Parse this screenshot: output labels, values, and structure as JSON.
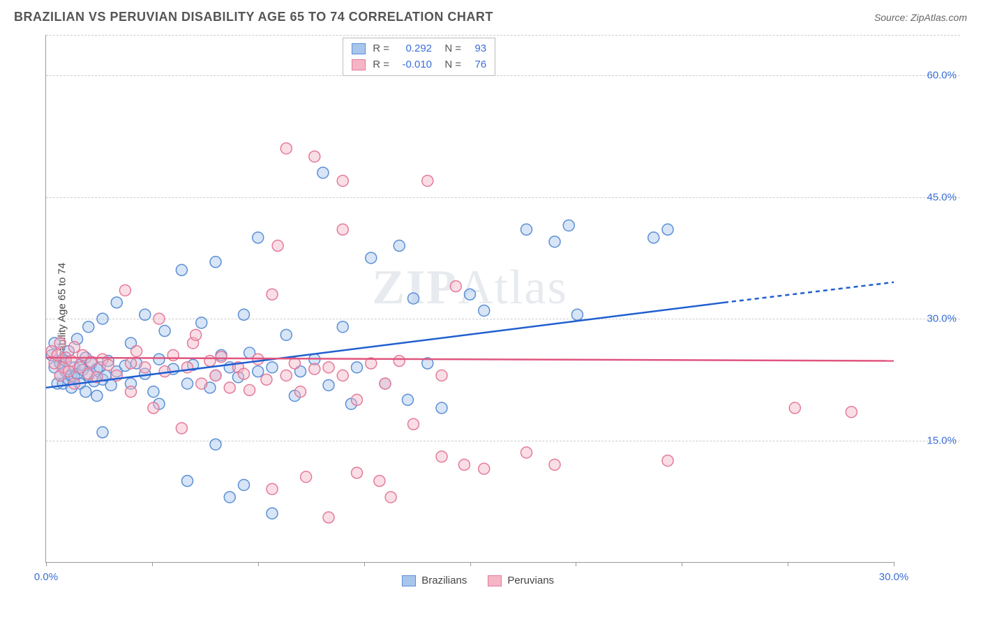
{
  "title": "BRAZILIAN VS PERUVIAN DISABILITY AGE 65 TO 74 CORRELATION CHART",
  "source": "Source: ZipAtlas.com",
  "ylabel": "Disability Age 65 to 74",
  "watermark_bold": "ZIP",
  "watermark_light": "Atlas",
  "chart": {
    "type": "scatter",
    "background_color": "#ffffff",
    "grid_color": "#cccccc",
    "axis_color": "#999999",
    "label_color": "#3a6fd8",
    "xlim": [
      0,
      30
    ],
    "ylim": [
      0,
      65
    ],
    "xticks": [
      0,
      3.75,
      7.5,
      11.25,
      15,
      18.75,
      22.5,
      26.25,
      30
    ],
    "xtick_labels": {
      "0": "0.0%",
      "30": "30.0%"
    },
    "yticks": [
      15,
      30,
      45,
      60
    ],
    "ytick_labels": {
      "15": "15.0%",
      "30": "30.0%",
      "45": "45.0%",
      "60": "60.0%"
    },
    "marker_radius": 8,
    "marker_opacity": 0.45,
    "line_width": 2.5,
    "series": [
      {
        "name": "Brazilians",
        "color_fill": "#a8c5ec",
        "color_stroke": "#5a8fd6",
        "line_color": "#1f5fd0",
        "R": "0.292",
        "N": "93",
        "trend": {
          "x1": 0,
          "y1": 21.5,
          "x2": 24,
          "y2": 32,
          "dash_x2": 30,
          "dash_y2": 34.5
        },
        "points": [
          [
            0.2,
            25.5
          ],
          [
            0.3,
            24
          ],
          [
            0.3,
            27
          ],
          [
            0.4,
            22
          ],
          [
            0.5,
            24.5
          ],
          [
            0.5,
            23
          ],
          [
            0.6,
            25
          ],
          [
            0.6,
            22
          ],
          [
            0.7,
            23.5
          ],
          [
            0.7,
            24.8
          ],
          [
            0.8,
            22.5
          ],
          [
            0.8,
            26
          ],
          [
            0.9,
            23
          ],
          [
            0.9,
            21.5
          ],
          [
            1.0,
            24
          ],
          [
            1.0,
            22.8
          ],
          [
            1.1,
            23.2
          ],
          [
            1.1,
            27.5
          ],
          [
            1.2,
            22
          ],
          [
            1.2,
            24.3
          ],
          [
            1.3,
            23.7
          ],
          [
            1.4,
            25.2
          ],
          [
            1.4,
            21
          ],
          [
            1.5,
            23
          ],
          [
            1.5,
            29
          ],
          [
            1.6,
            24.5
          ],
          [
            1.7,
            22.3
          ],
          [
            1.8,
            23.8
          ],
          [
            1.8,
            20.5
          ],
          [
            1.9,
            24
          ],
          [
            2.0,
            16
          ],
          [
            2.0,
            22.5
          ],
          [
            2.0,
            30
          ],
          [
            2.1,
            23
          ],
          [
            2.2,
            24.8
          ],
          [
            2.3,
            21.8
          ],
          [
            2.5,
            32
          ],
          [
            2.5,
            23.5
          ],
          [
            2.8,
            24.2
          ],
          [
            3.0,
            27
          ],
          [
            3.0,
            22
          ],
          [
            3.2,
            24.5
          ],
          [
            3.5,
            23.2
          ],
          [
            3.5,
            30.5
          ],
          [
            3.8,
            21
          ],
          [
            4.0,
            25
          ],
          [
            4.0,
            19.5
          ],
          [
            4.2,
            28.5
          ],
          [
            4.5,
            23.8
          ],
          [
            4.8,
            36
          ],
          [
            5.0,
            22
          ],
          [
            5.0,
            10
          ],
          [
            5.2,
            24.3
          ],
          [
            5.5,
            29.5
          ],
          [
            5.8,
            21.5
          ],
          [
            6.0,
            23
          ],
          [
            6.0,
            37
          ],
          [
            6.0,
            14.5
          ],
          [
            6.2,
            25.5
          ],
          [
            6.5,
            24
          ],
          [
            6.5,
            8
          ],
          [
            6.8,
            22.8
          ],
          [
            7.0,
            30.5
          ],
          [
            7.0,
            9.5
          ],
          [
            7.2,
            25.8
          ],
          [
            7.5,
            40
          ],
          [
            7.5,
            23.5
          ],
          [
            8.0,
            6
          ],
          [
            8.0,
            24
          ],
          [
            8.5,
            28
          ],
          [
            8.8,
            20.5
          ],
          [
            9.0,
            23.5
          ],
          [
            9.5,
            25
          ],
          [
            9.8,
            48
          ],
          [
            10.0,
            21.8
          ],
          [
            10.5,
            29
          ],
          [
            10.8,
            19.5
          ],
          [
            11.0,
            24
          ],
          [
            11.5,
            37.5
          ],
          [
            12.0,
            22
          ],
          [
            12.5,
            39
          ],
          [
            12.8,
            20
          ],
          [
            13.0,
            32.5
          ],
          [
            13.5,
            24.5
          ],
          [
            14.0,
            19
          ],
          [
            15.0,
            33
          ],
          [
            15.5,
            31
          ],
          [
            17.0,
            41
          ],
          [
            18.0,
            39.5
          ],
          [
            18.5,
            41.5
          ],
          [
            18.8,
            30.5
          ],
          [
            21.5,
            40
          ],
          [
            22.0,
            41
          ]
        ]
      },
      {
        "name": "Peruvians",
        "color_fill": "#f5b5c5",
        "color_stroke": "#e37a9a",
        "line_color": "#e0557f",
        "R": "-0.010",
        "N": "76",
        "trend": {
          "x1": 0,
          "y1": 25.2,
          "x2": 30,
          "y2": 24.8
        },
        "points": [
          [
            0.2,
            26
          ],
          [
            0.3,
            24.5
          ],
          [
            0.4,
            25.5
          ],
          [
            0.5,
            23
          ],
          [
            0.5,
            27
          ],
          [
            0.6,
            24
          ],
          [
            0.7,
            25.2
          ],
          [
            0.8,
            23.5
          ],
          [
            0.9,
            24.8
          ],
          [
            1.0,
            22
          ],
          [
            1.0,
            26.5
          ],
          [
            1.2,
            24
          ],
          [
            1.3,
            25.5
          ],
          [
            1.5,
            23.2
          ],
          [
            1.6,
            24.7
          ],
          [
            1.8,
            22.8
          ],
          [
            2.0,
            25
          ],
          [
            2.2,
            24.3
          ],
          [
            2.5,
            23
          ],
          [
            2.8,
            33.5
          ],
          [
            3.0,
            24.5
          ],
          [
            3.0,
            21
          ],
          [
            3.2,
            26
          ],
          [
            3.5,
            24
          ],
          [
            3.8,
            19
          ],
          [
            4.0,
            30
          ],
          [
            4.2,
            23.5
          ],
          [
            4.5,
            25.5
          ],
          [
            4.8,
            16.5
          ],
          [
            5.0,
            24
          ],
          [
            5.2,
            27
          ],
          [
            5.3,
            28
          ],
          [
            5.5,
            22
          ],
          [
            5.8,
            24.8
          ],
          [
            6.0,
            23
          ],
          [
            6.2,
            25.3
          ],
          [
            6.5,
            21.5
          ],
          [
            6.8,
            24
          ],
          [
            7.0,
            23.2
          ],
          [
            7.2,
            21.2
          ],
          [
            7.5,
            25
          ],
          [
            7.8,
            22.5
          ],
          [
            8.0,
            33
          ],
          [
            8.0,
            9
          ],
          [
            8.2,
            39
          ],
          [
            8.5,
            51
          ],
          [
            8.5,
            23
          ],
          [
            8.8,
            24.5
          ],
          [
            9.0,
            21
          ],
          [
            9.2,
            10.5
          ],
          [
            9.5,
            23.8
          ],
          [
            9.5,
            50
          ],
          [
            10.0,
            5.5
          ],
          [
            10.0,
            24
          ],
          [
            10.5,
            23
          ],
          [
            10.5,
            47
          ],
          [
            10.5,
            41
          ],
          [
            11.0,
            20
          ],
          [
            11.0,
            11
          ],
          [
            11.5,
            24.5
          ],
          [
            11.8,
            10
          ],
          [
            12.0,
            22
          ],
          [
            12.2,
            8
          ],
          [
            12.5,
            24.8
          ],
          [
            13.0,
            17
          ],
          [
            13.5,
            47
          ],
          [
            14.0,
            23
          ],
          [
            14.0,
            13
          ],
          [
            14.5,
            34
          ],
          [
            14.8,
            12
          ],
          [
            15.5,
            11.5
          ],
          [
            17.0,
            13.5
          ],
          [
            18.0,
            12
          ],
          [
            22.0,
            12.5
          ],
          [
            26.5,
            19
          ],
          [
            28.5,
            18.5
          ]
        ]
      }
    ]
  },
  "legend_bottom": [
    {
      "label": "Brazilians",
      "fill": "#a8c5ec",
      "stroke": "#5a8fd6"
    },
    {
      "label": "Peruvians",
      "fill": "#f5b5c5",
      "stroke": "#e37a9a"
    }
  ]
}
